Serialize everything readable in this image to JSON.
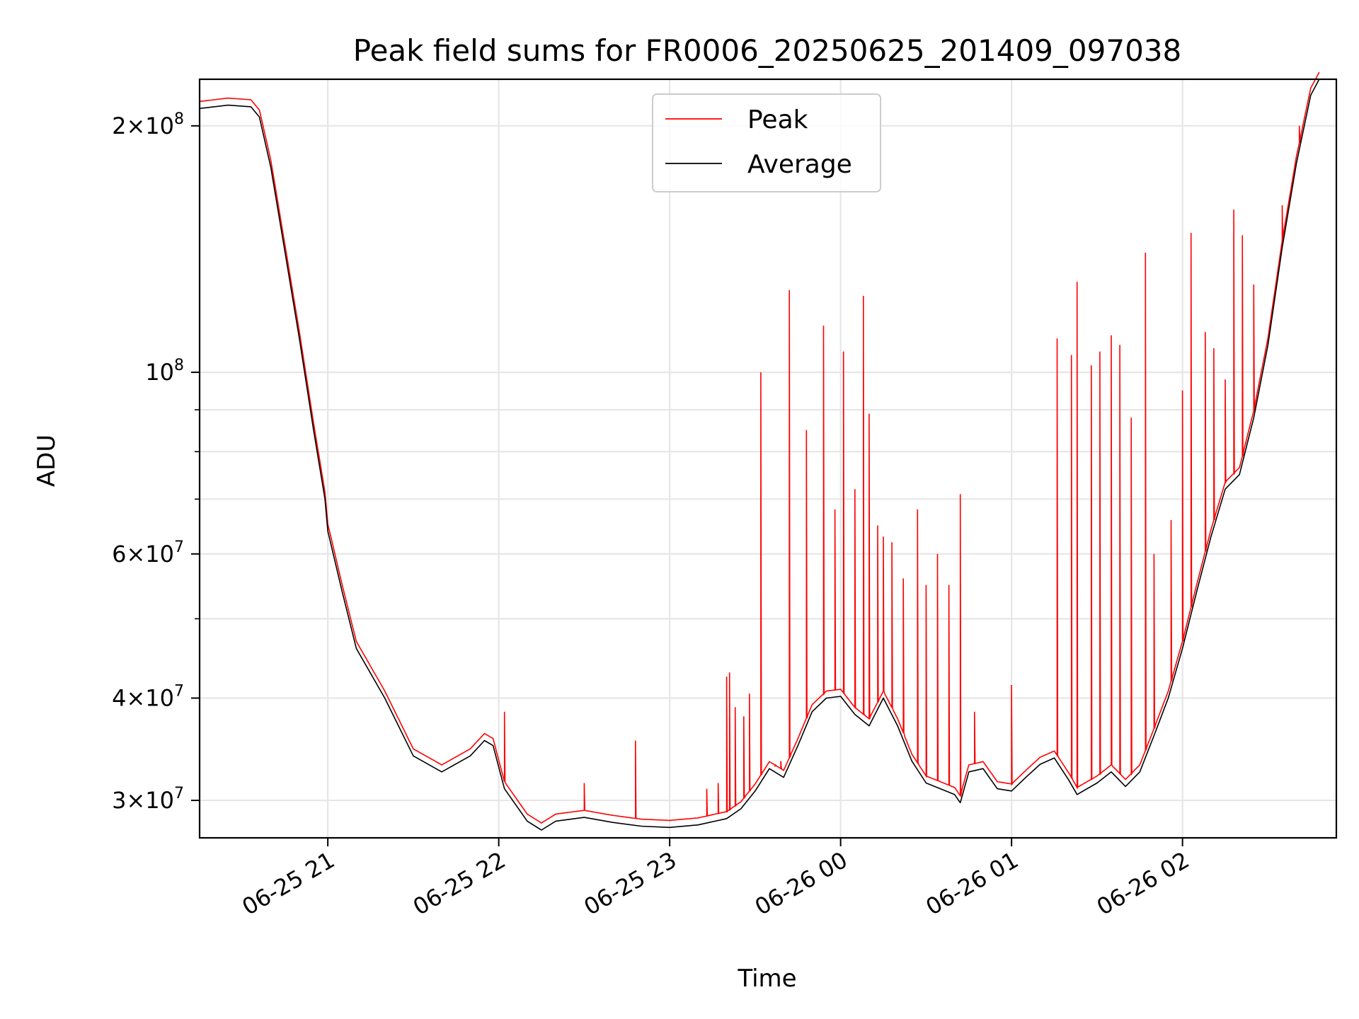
{
  "chart_data": {
    "type": "line",
    "title": "Peak field sums for FR0006_20250625_201409_097038",
    "xlabel": "Time",
    "ylabel": "ADU",
    "y_scale": "log",
    "ylim": [
      27000000,
      228000000
    ],
    "xlim": [
      "2025-06-25 20:15",
      "2025-06-26 02:54"
    ],
    "grid": true,
    "legend_position": "top-center",
    "x_ticks": [
      {
        "x": "2025-06-25 21:00",
        "label": "06-25 21"
      },
      {
        "x": "2025-06-25 22:00",
        "label": "06-25 22"
      },
      {
        "x": "2025-06-25 23:00",
        "label": "06-25 23"
      },
      {
        "x": "2025-06-26 00:00",
        "label": "06-26 00"
      },
      {
        "x": "2025-06-26 01:00",
        "label": "06-26 01"
      },
      {
        "x": "2025-06-26 02:00",
        "label": "06-26 02"
      }
    ],
    "y_ticks_major": [
      {
        "value": 30000000,
        "mantissa": "3",
        "exponent": "7"
      },
      {
        "value": 40000000,
        "mantissa": "4",
        "exponent": "7"
      },
      {
        "value": 60000000,
        "mantissa": "6",
        "exponent": "7"
      },
      {
        "value": 100000000,
        "mantissa": "",
        "exponent": "8"
      },
      {
        "value": 200000000,
        "mantissa": "2",
        "exponent": "8"
      }
    ],
    "y_ticks_minor": [
      50000000,
      70000000,
      80000000,
      90000000
    ],
    "series": [
      {
        "name": "Average",
        "color": "#000000",
        "points": [
          [
            "2025-06-25 20:15",
            210000000
          ],
          [
            "2025-06-25 20:25",
            212000000
          ],
          [
            "2025-06-25 20:33",
            211000000
          ],
          [
            "2025-06-25 20:36",
            205000000
          ],
          [
            "2025-06-25 20:40",
            178000000
          ],
          [
            "2025-06-25 20:45",
            140000000
          ],
          [
            "2025-06-25 20:50",
            110000000
          ],
          [
            "2025-06-25 20:55",
            85000000
          ],
          [
            "2025-06-25 20:59",
            70000000
          ],
          [
            "2025-06-25 21:00",
            64000000
          ],
          [
            "2025-06-25 21:05",
            54000000
          ],
          [
            "2025-06-25 21:10",
            46000000
          ],
          [
            "2025-06-25 21:20",
            40000000
          ],
          [
            "2025-06-25 21:30",
            34000000
          ],
          [
            "2025-06-25 21:40",
            32500000
          ],
          [
            "2025-06-25 21:50",
            34000000
          ],
          [
            "2025-06-25 21:55",
            35500000
          ],
          [
            "2025-06-25 21:58",
            35000000
          ],
          [
            "2025-06-25 22:02",
            31000000
          ],
          [
            "2025-06-25 22:10",
            28300000
          ],
          [
            "2025-06-25 22:15",
            27600000
          ],
          [
            "2025-06-25 22:20",
            28300000
          ],
          [
            "2025-06-25 22:30",
            28600000
          ],
          [
            "2025-06-25 22:40",
            28200000
          ],
          [
            "2025-06-25 22:50",
            27900000
          ],
          [
            "2025-06-25 23:00",
            27800000
          ],
          [
            "2025-06-25 23:10",
            28000000
          ],
          [
            "2025-06-25 23:20",
            28500000
          ],
          [
            "2025-06-25 23:25",
            29300000
          ],
          [
            "2025-06-25 23:30",
            30800000
          ],
          [
            "2025-06-25 23:35",
            32800000
          ],
          [
            "2025-06-25 23:40",
            32000000
          ],
          [
            "2025-06-25 23:45",
            35000000
          ],
          [
            "2025-06-25 23:50",
            38500000
          ],
          [
            "2025-06-25 23:55",
            40000000
          ],
          [
            "2025-06-26 00:00",
            40200000
          ],
          [
            "2025-06-26 00:05",
            38200000
          ],
          [
            "2025-06-26 00:10",
            37000000
          ],
          [
            "2025-06-26 00:15",
            40000000
          ],
          [
            "2025-06-26 00:20",
            37000000
          ],
          [
            "2025-06-26 00:25",
            33500000
          ],
          [
            "2025-06-26 00:30",
            31500000
          ],
          [
            "2025-06-26 00:35",
            31000000
          ],
          [
            "2025-06-26 00:40",
            30500000
          ],
          [
            "2025-06-26 00:42",
            29800000
          ],
          [
            "2025-06-26 00:45",
            32500000
          ],
          [
            "2025-06-26 00:50",
            32800000
          ],
          [
            "2025-06-26 00:55",
            31000000
          ],
          [
            "2025-06-26 01:00",
            30800000
          ],
          [
            "2025-06-26 01:05",
            32000000
          ],
          [
            "2025-06-26 01:10",
            33200000
          ],
          [
            "2025-06-26 01:15",
            33800000
          ],
          [
            "2025-06-26 01:20",
            31800000
          ],
          [
            "2025-06-26 01:23",
            30500000
          ],
          [
            "2025-06-26 01:30",
            31500000
          ],
          [
            "2025-06-26 01:35",
            32500000
          ],
          [
            "2025-06-26 01:40",
            31200000
          ],
          [
            "2025-06-26 01:45",
            32500000
          ],
          [
            "2025-06-26 01:50",
            36000000
          ],
          [
            "2025-06-26 01:55",
            40000000
          ],
          [
            "2025-06-26 02:00",
            46000000
          ],
          [
            "2025-06-26 02:05",
            54000000
          ],
          [
            "2025-06-26 02:10",
            63000000
          ],
          [
            "2025-06-26 02:15",
            72000000
          ],
          [
            "2025-06-26 02:20",
            75000000
          ],
          [
            "2025-06-26 02:25",
            88000000
          ],
          [
            "2025-06-26 02:30",
            108000000
          ],
          [
            "2025-06-26 02:35",
            142000000
          ],
          [
            "2025-06-26 02:40",
            180000000
          ],
          [
            "2025-06-26 02:45",
            218000000
          ],
          [
            "2025-06-26 02:48",
            228000000
          ]
        ]
      },
      {
        "name": "Peak",
        "color": "#ff0000",
        "spikes": [
          [
            "2025-06-25 22:02",
            38500000
          ],
          [
            "2025-06-25 22:30",
            31500000
          ],
          [
            "2025-06-25 22:48",
            35500000
          ],
          [
            "2025-06-25 23:13",
            31000000
          ],
          [
            "2025-06-25 23:17",
            31500000
          ],
          [
            "2025-06-25 23:20",
            42500000
          ],
          [
            "2025-06-25 23:21",
            43000000
          ],
          [
            "2025-06-25 23:23",
            39000000
          ],
          [
            "2025-06-25 23:26",
            38000000
          ],
          [
            "2025-06-25 23:28",
            40500000
          ],
          [
            "2025-06-25 23:32",
            100000000
          ],
          [
            "2025-06-25 23:37",
            33000000
          ],
          [
            "2025-06-25 23:39",
            33500000
          ],
          [
            "2025-06-25 23:42",
            126000000
          ],
          [
            "2025-06-25 23:48",
            85000000
          ],
          [
            "2025-06-25 23:54",
            114000000
          ],
          [
            "2025-06-25 23:58",
            68000000
          ],
          [
            "2025-06-26 00:01",
            106000000
          ],
          [
            "2025-06-26 00:05",
            72000000
          ],
          [
            "2025-06-26 00:08",
            124000000
          ],
          [
            "2025-06-26 00:10",
            89000000
          ],
          [
            "2025-06-26 00:13",
            65000000
          ],
          [
            "2025-06-26 00:15",
            63000000
          ],
          [
            "2025-06-26 00:18",
            62000000
          ],
          [
            "2025-06-26 00:22",
            56000000
          ],
          [
            "2025-06-26 00:27",
            68000000
          ],
          [
            "2025-06-26 00:30",
            55000000
          ],
          [
            "2025-06-26 00:34",
            60000000
          ],
          [
            "2025-06-26 00:38",
            55000000
          ],
          [
            "2025-06-26 00:42",
            71000000
          ],
          [
            "2025-06-26 00:47",
            38500000
          ],
          [
            "2025-06-26 01:00",
            41500000
          ],
          [
            "2025-06-26 01:16",
            110000000
          ],
          [
            "2025-06-26 01:21",
            105000000
          ],
          [
            "2025-06-26 01:23",
            129000000
          ],
          [
            "2025-06-26 01:28",
            102000000
          ],
          [
            "2025-06-26 01:31",
            106000000
          ],
          [
            "2025-06-26 01:35",
            111000000
          ],
          [
            "2025-06-26 01:38",
            108000000
          ],
          [
            "2025-06-26 01:42",
            88000000
          ],
          [
            "2025-06-26 01:47",
            140000000
          ],
          [
            "2025-06-26 01:50",
            60000000
          ],
          [
            "2025-06-26 01:56",
            66000000
          ],
          [
            "2025-06-26 02:00",
            95000000
          ],
          [
            "2025-06-26 02:03",
            148000000
          ],
          [
            "2025-06-26 02:08",
            112000000
          ],
          [
            "2025-06-26 02:11",
            107000000
          ],
          [
            "2025-06-26 02:15",
            98000000
          ],
          [
            "2025-06-26 02:18",
            158000000
          ],
          [
            "2025-06-26 02:21",
            147000000
          ],
          [
            "2025-06-26 02:25",
            128000000
          ],
          [
            "2025-06-26 02:35",
            160000000
          ],
          [
            "2025-06-26 02:41",
            200000000
          ]
        ]
      }
    ]
  }
}
